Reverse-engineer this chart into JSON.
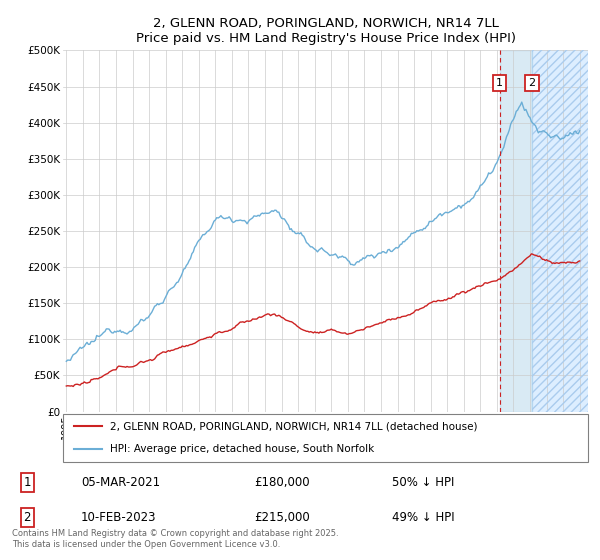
{
  "title": "2, GLENN ROAD, PORINGLAND, NORWICH, NR14 7LL",
  "subtitle": "Price paid vs. HM Land Registry's House Price Index (HPI)",
  "ylim": [
    0,
    500000
  ],
  "yticks": [
    0,
    50000,
    100000,
    150000,
    200000,
    250000,
    300000,
    350000,
    400000,
    450000,
    500000
  ],
  "ytick_labels": [
    "£0",
    "£50K",
    "£100K",
    "£150K",
    "£200K",
    "£250K",
    "£300K",
    "£350K",
    "£400K",
    "£450K",
    "£500K"
  ],
  "xlim_start": 1994.8,
  "xlim_end": 2026.5,
  "transaction1_x": 2021.17,
  "transaction1_y": 180000,
  "transaction1_label": "05-MAR-2021",
  "transaction1_price": "£180,000",
  "transaction1_hpi": "50% ↓ HPI",
  "transaction2_x": 2023.12,
  "transaction2_y": 215000,
  "transaction2_label": "10-FEB-2023",
  "transaction2_price": "£215,000",
  "transaction2_hpi": "49% ↓ HPI",
  "hpi_color": "#6baed6",
  "price_color": "#cc2222",
  "legend_line1": "2, GLENN ROAD, PORINGLAND, NORWICH, NR14 7LL (detached house)",
  "legend_line2": "HPI: Average price, detached house, South Norfolk",
  "footer": "Contains HM Land Registry data © Crown copyright and database right 2025.\nThis data is licensed under the Open Government Licence v3.0.",
  "background_color": "#ffffff",
  "plot_bg_color": "#ffffff",
  "grid_color": "#cccccc"
}
